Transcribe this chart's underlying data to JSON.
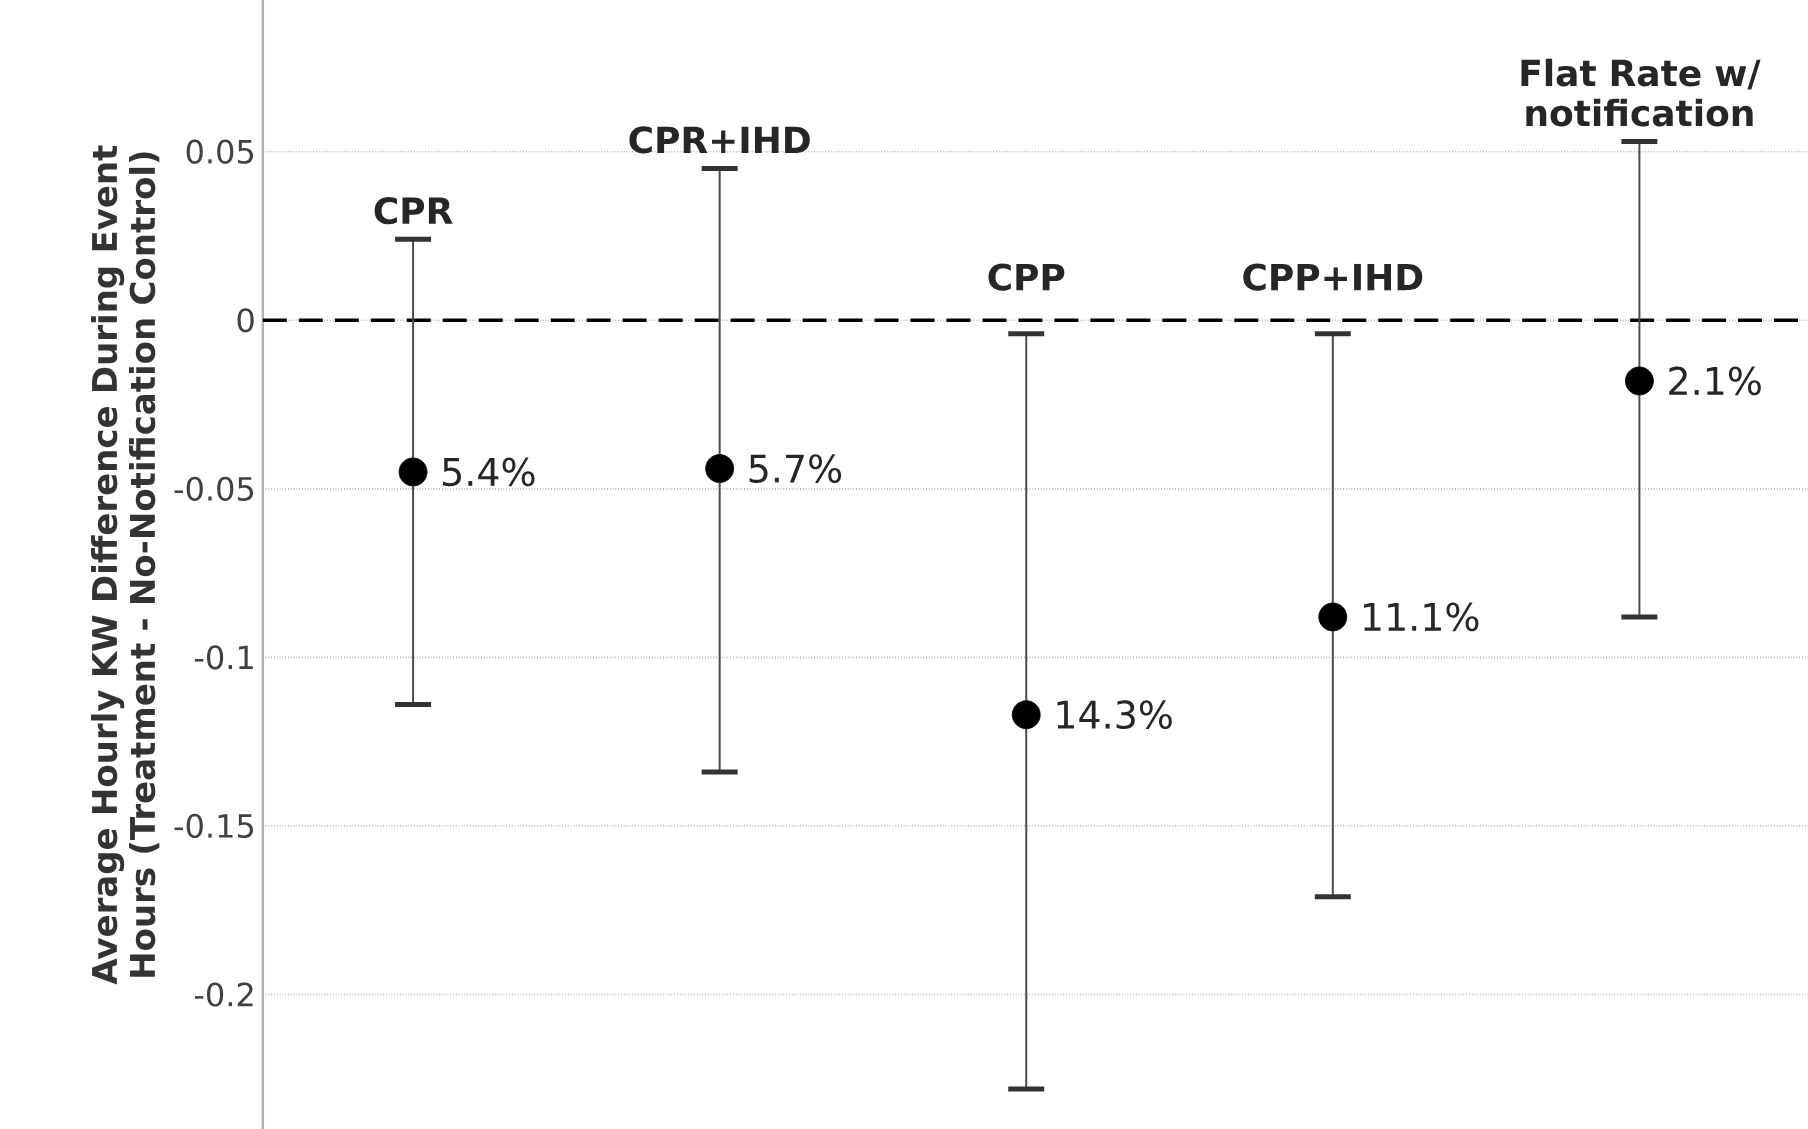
{
  "chart_data": {
    "type": "scatter",
    "ylabel": "Average Hourly KW Difference During Event Hours (Treatment - No-Notification Control)",
    "categories": [
      "CPR",
      "CPR+IHD",
      "CPP",
      "CPP+IHD",
      "Flat Rate w/ notification"
    ],
    "values": [
      -0.045,
      -0.044,
      -0.117,
      -0.088,
      -0.018
    ],
    "errors": [
      [
        -0.114,
        0.024
      ],
      [
        -0.134,
        0.045
      ],
      [
        -0.228,
        -0.004
      ],
      [
        -0.171,
        -0.004
      ],
      [
        -0.088,
        0.053
      ]
    ],
    "annotations": [
      {
        "text": "5.4%",
        "x": "CPR",
        "y": -0.045
      },
      {
        "text": "5.7%",
        "x": "CPR+IHD",
        "y": -0.044
      },
      {
        "text": "14.3%",
        "x": "CPP",
        "y": -0.117
      },
      {
        "text": "11.1%",
        "x": "CPP+IHD",
        "y": -0.088
      },
      {
        "text": "2.1%",
        "x": "Flat Rate w/ notification",
        "y": -0.018
      }
    ],
    "color": "#000000",
    "marker": "circle",
    "ylim": [
      -0.24,
      0.095
    ],
    "yticks": [
      -0.2,
      -0.15,
      -0.1,
      -0.05,
      0,
      0.05
    ],
    "grid": "y",
    "tick_labels": "y",
    "ref_lines": [
      {
        "axis": "y",
        "value": 0,
        "color": "#000000",
        "line_style": "dashed"
      }
    ]
  }
}
